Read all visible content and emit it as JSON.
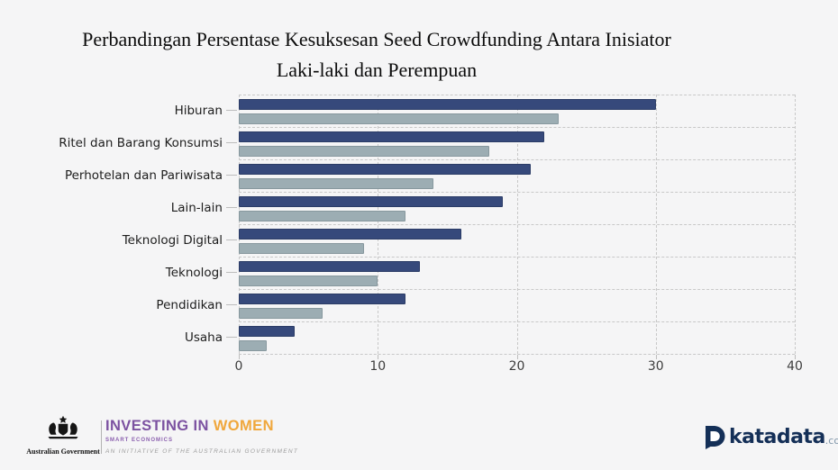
{
  "title": {
    "line1": "Perbandingan Persentase Kesuksesan Seed Crowdfunding Antara Inisiator",
    "line2": "Laki-laki dan Perempuan"
  },
  "chart_data": {
    "type": "bar",
    "orientation": "horizontal",
    "title": "Perbandingan Persentase Kesuksesan Seed Crowdfunding Antara Inisiator Laki-laki dan Perempuan",
    "categories": [
      "Hiburan",
      "Ritel dan Barang Konsumsi",
      "Perhotelan dan Pariwisata",
      "Lain-lain",
      "Teknologi Digital",
      "Teknologi",
      "Pendidikan",
      "Usaha"
    ],
    "series": [
      {
        "name": "series-1-dark-navy",
        "color": "#36497b",
        "edge": "#2b3c66",
        "values": [
          30,
          22,
          21,
          19,
          16,
          13,
          12,
          4
        ]
      },
      {
        "name": "series-2-light-blue-gray",
        "color": "#9cadb3",
        "edge": "#87989e",
        "values": [
          23,
          18,
          14,
          12,
          9,
          10,
          6,
          2
        ]
      }
    ],
    "xlabel": "",
    "ylabel": "",
    "xlim": [
      0,
      40
    ],
    "xticks": [
      0,
      10,
      20,
      30,
      40
    ],
    "grid": "dashed",
    "legend": "none"
  },
  "colors": {
    "background": "#f5f5f6",
    "gridline": "#c8c8c8",
    "tick_label": "#3d3d3d"
  },
  "footer": {
    "australian_government": {
      "label": "Australian Government",
      "emblem": "australian-coat-of-arms"
    },
    "investing_in_women": {
      "title_part1": "INVESTING IN",
      "title_part2": " WOMEN",
      "subtitle": "SMART ECONOMICS",
      "tagline": "AN INITIATIVE OF THE AUSTRALIAN GOVERNMENT",
      "purple": "#7c52a1",
      "orange": "#f0a73c"
    },
    "katadata": {
      "brand": "katadata",
      "domain_suffix": ".co.id",
      "navy": "#142f57",
      "suffix_gray": "#8096a9"
    }
  }
}
